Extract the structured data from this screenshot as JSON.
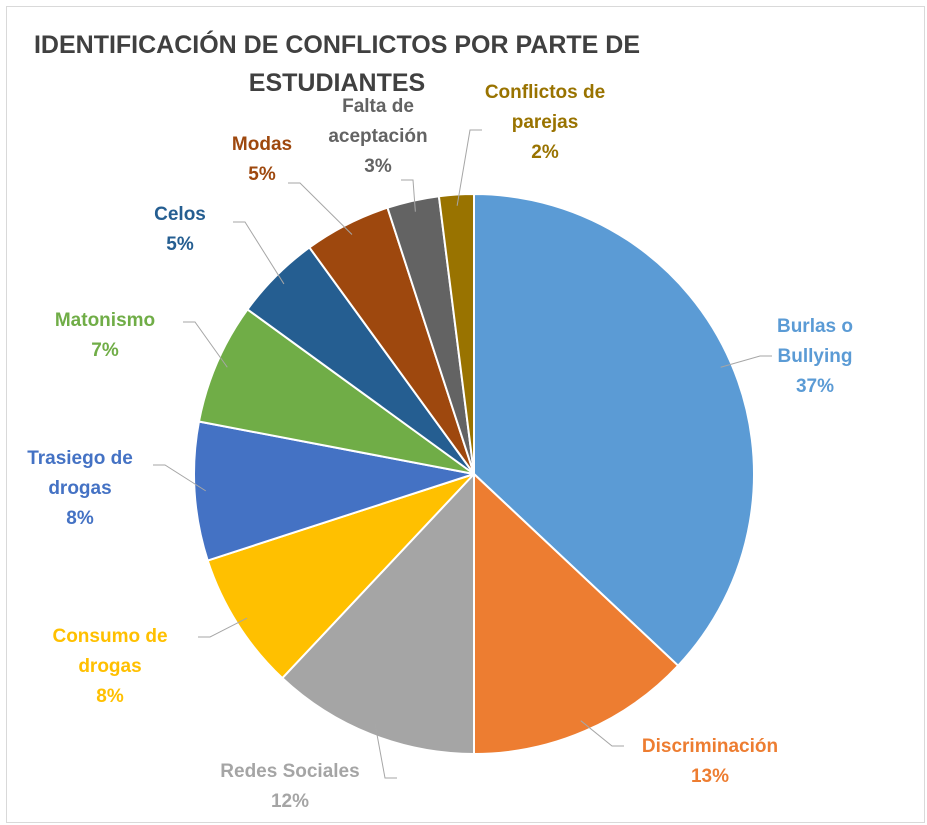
{
  "chart_data": {
    "type": "pie",
    "title": "IDENTIFICACIÓN DE CONFLICTOS POR PARTE DE ESTUDIANTES",
    "categories": [
      "Burlas o Bullying",
      "Discriminación",
      "Redes Sociales",
      "Consumo de drogas",
      "Trasiego de drogas",
      "Matonismo",
      "Celos",
      "Modas",
      "Falta de aceptación",
      "Conflictos de parejas"
    ],
    "values": [
      37,
      13,
      12,
      8,
      8,
      7,
      5,
      5,
      3,
      2
    ],
    "value_labels": [
      "37%",
      "13%",
      "12%",
      "8%",
      "8%",
      "7%",
      "5%",
      "5%",
      "3%",
      "2%"
    ],
    "colors": [
      "#5b9bd5",
      "#ed7d31",
      "#a5a5a5",
      "#ffc000",
      "#4472c4",
      "#70ad47",
      "#255e91",
      "#9e480e",
      "#636363",
      "#997300"
    ]
  }
}
